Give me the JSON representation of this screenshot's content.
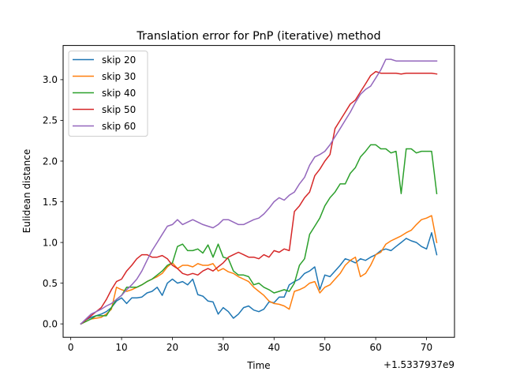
{
  "chart_data": {
    "type": "line",
    "title": "Translation error for PnP (iterative) method",
    "xlabel": "Time",
    "ylabel": "Eulidean distance",
    "x_offset_label": "+1.5337937e9",
    "xlim": [
      -1.5,
      75.5
    ],
    "ylim": [
      -0.165,
      3.42
    ],
    "x_ticks": [
      0,
      10,
      20,
      30,
      40,
      50,
      60,
      70
    ],
    "y_ticks": [
      0.0,
      0.5,
      1.0,
      1.5,
      2.0,
      2.5,
      3.0
    ],
    "x_tick_labels": [
      "0",
      "10",
      "20",
      "30",
      "40",
      "50",
      "60",
      "70"
    ],
    "y_tick_labels": [
      "0.0",
      "0.5",
      "1.0",
      "1.5",
      "2.0",
      "2.5",
      "3.0"
    ],
    "grid": false,
    "legend_position": "top-left",
    "series": [
      {
        "name": "skip 20",
        "color": "#1f77b4",
        "x": [
          2,
          3,
          4,
          5,
          6,
          7,
          8,
          9,
          10,
          11,
          12,
          13,
          14,
          15,
          16,
          17,
          18,
          19,
          20,
          21,
          22,
          23,
          24,
          25,
          26,
          27,
          28,
          29,
          30,
          31,
          32,
          33,
          34,
          35,
          36,
          37,
          38,
          39,
          40,
          41,
          42,
          43,
          44,
          45,
          46,
          47,
          48,
          49,
          50,
          51,
          52,
          53,
          54,
          55,
          56,
          57,
          58,
          59,
          60,
          61,
          62,
          63,
          64,
          65,
          66,
          67,
          68,
          69,
          70,
          71,
          72
        ],
        "y": [
          0.0,
          0.05,
          0.08,
          0.1,
          0.12,
          0.15,
          0.2,
          0.28,
          0.32,
          0.25,
          0.32,
          0.32,
          0.33,
          0.38,
          0.4,
          0.45,
          0.35,
          0.5,
          0.55,
          0.5,
          0.52,
          0.48,
          0.55,
          0.36,
          0.34,
          0.28,
          0.27,
          0.12,
          0.2,
          0.15,
          0.07,
          0.12,
          0.2,
          0.22,
          0.17,
          0.15,
          0.18,
          0.27,
          0.26,
          0.33,
          0.33,
          0.48,
          0.52,
          0.55,
          0.62,
          0.65,
          0.7,
          0.42,
          0.6,
          0.58,
          0.65,
          0.72,
          0.8,
          0.78,
          0.75,
          0.8,
          0.78,
          0.82,
          0.85,
          0.9,
          0.92,
          0.9,
          0.95,
          1.0,
          1.05,
          1.02,
          1.0,
          0.95,
          0.92,
          1.12,
          0.85
        ]
      },
      {
        "name": "skip 30",
        "color": "#ff7f0e",
        "x": [
          2,
          4,
          5,
          6,
          7,
          8,
          9,
          10,
          11,
          12,
          13,
          14,
          15,
          16,
          17,
          18,
          19,
          20,
          21,
          22,
          23,
          24,
          25,
          26,
          27,
          28,
          29,
          30,
          31,
          32,
          33,
          34,
          35,
          36,
          37,
          38,
          39,
          40,
          41,
          42,
          43,
          44,
          45,
          46,
          47,
          48,
          49,
          50,
          51,
          52,
          53,
          54,
          55,
          56,
          57,
          58,
          59,
          60,
          61,
          62,
          63,
          64,
          65,
          66,
          67,
          68,
          69,
          70,
          71,
          72
        ],
        "y": [
          0.0,
          0.06,
          0.07,
          0.08,
          0.12,
          0.18,
          0.45,
          0.42,
          0.4,
          0.42,
          0.45,
          0.48,
          0.52,
          0.55,
          0.58,
          0.62,
          0.7,
          0.75,
          0.68,
          0.72,
          0.72,
          0.7,
          0.74,
          0.72,
          0.72,
          0.74,
          0.65,
          0.68,
          0.64,
          0.62,
          0.58,
          0.55,
          0.52,
          0.45,
          0.4,
          0.35,
          0.28,
          0.25,
          0.24,
          0.22,
          0.18,
          0.4,
          0.42,
          0.45,
          0.5,
          0.52,
          0.38,
          0.45,
          0.48,
          0.55,
          0.62,
          0.72,
          0.78,
          0.82,
          0.58,
          0.62,
          0.72,
          0.85,
          0.88,
          0.98,
          1.02,
          1.05,
          1.08,
          1.12,
          1.15,
          1.22,
          1.28,
          1.3,
          1.33,
          1.0
        ]
      },
      {
        "name": "skip 40",
        "color": "#2ca02c",
        "x": [
          2,
          4,
          5,
          6,
          7,
          8,
          9,
          10,
          11,
          12,
          13,
          14,
          15,
          16,
          17,
          18,
          19,
          20,
          21,
          22,
          23,
          24,
          25,
          26,
          27,
          28,
          29,
          30,
          31,
          32,
          33,
          34,
          35,
          36,
          37,
          38,
          39,
          40,
          41,
          42,
          43,
          44,
          45,
          46,
          47,
          48,
          49,
          50,
          51,
          52,
          53,
          54,
          55,
          56,
          57,
          58,
          59,
          60,
          61,
          62,
          63,
          64,
          65,
          66,
          67,
          68,
          69,
          70,
          71,
          72
        ],
        "y": [
          0.0,
          0.06,
          0.1,
          0.1,
          0.1,
          0.2,
          0.3,
          0.35,
          0.45,
          0.45,
          0.45,
          0.48,
          0.52,
          0.55,
          0.6,
          0.65,
          0.72,
          0.75,
          0.95,
          0.98,
          0.9,
          0.9,
          0.92,
          0.87,
          0.97,
          0.82,
          0.98,
          0.82,
          0.8,
          0.65,
          0.6,
          0.6,
          0.58,
          0.48,
          0.5,
          0.45,
          0.42,
          0.38,
          0.4,
          0.42,
          0.4,
          0.5,
          0.72,
          0.8,
          1.1,
          1.2,
          1.3,
          1.45,
          1.55,
          1.62,
          1.72,
          1.72,
          1.85,
          1.92,
          2.05,
          2.12,
          2.2,
          2.2,
          2.15,
          2.15,
          2.1,
          2.12,
          1.6,
          2.15,
          2.15,
          2.1,
          2.12,
          2.12,
          2.12,
          1.6
        ]
      },
      {
        "name": "skip 50",
        "color": "#d62728",
        "x": [
          2,
          4,
          5,
          6,
          7,
          8,
          9,
          10,
          11,
          12,
          13,
          14,
          15,
          16,
          17,
          18,
          19,
          20,
          21,
          22,
          23,
          24,
          25,
          26,
          27,
          28,
          29,
          30,
          31,
          32,
          33,
          34,
          35,
          36,
          37,
          38,
          39,
          40,
          41,
          42,
          43,
          44,
          45,
          46,
          47,
          48,
          49,
          50,
          51,
          52,
          53,
          54,
          55,
          56,
          57,
          58,
          59,
          60,
          61,
          62,
          63,
          64,
          65,
          66,
          67,
          68,
          69,
          70,
          71,
          72
        ],
        "y": [
          0.0,
          0.1,
          0.15,
          0.2,
          0.3,
          0.42,
          0.52,
          0.55,
          0.65,
          0.72,
          0.8,
          0.85,
          0.85,
          0.82,
          0.82,
          0.84,
          0.8,
          0.72,
          0.68,
          0.62,
          0.6,
          0.62,
          0.6,
          0.65,
          0.68,
          0.65,
          0.7,
          0.75,
          0.82,
          0.85,
          0.88,
          0.85,
          0.82,
          0.82,
          0.8,
          0.85,
          0.82,
          0.9,
          0.88,
          0.92,
          0.9,
          1.38,
          1.45,
          1.55,
          1.62,
          1.82,
          1.9,
          2.0,
          2.08,
          2.4,
          2.5,
          2.6,
          2.7,
          2.75,
          2.85,
          2.95,
          3.05,
          3.1,
          3.08,
          3.08,
          3.08,
          3.08,
          3.07,
          3.08,
          3.08,
          3.08,
          3.08,
          3.08,
          3.08,
          3.07
        ]
      },
      {
        "name": "skip 60",
        "color": "#9467bd",
        "x": [
          2,
          4,
          5,
          6,
          7,
          8,
          9,
          10,
          11,
          12,
          13,
          14,
          15,
          16,
          17,
          18,
          19,
          20,
          21,
          22,
          23,
          24,
          25,
          26,
          27,
          28,
          29,
          30,
          31,
          32,
          33,
          34,
          35,
          36,
          37,
          38,
          39,
          40,
          41,
          42,
          43,
          44,
          45,
          46,
          47,
          48,
          49,
          50,
          51,
          52,
          53,
          54,
          55,
          56,
          57,
          58,
          59,
          60,
          61,
          62,
          63,
          64,
          65,
          66,
          67,
          68,
          69,
          70,
          71,
          72
        ],
        "y": [
          0.0,
          0.12,
          0.15,
          0.18,
          0.22,
          0.25,
          0.3,
          0.35,
          0.42,
          0.48,
          0.55,
          0.65,
          0.78,
          0.9,
          1.0,
          1.1,
          1.2,
          1.22,
          1.28,
          1.22,
          1.25,
          1.28,
          1.25,
          1.22,
          1.2,
          1.18,
          1.22,
          1.28,
          1.28,
          1.25,
          1.22,
          1.22,
          1.25,
          1.28,
          1.3,
          1.35,
          1.42,
          1.5,
          1.55,
          1.52,
          1.58,
          1.62,
          1.72,
          1.8,
          1.95,
          2.05,
          2.08,
          2.12,
          2.2,
          2.3,
          2.4,
          2.5,
          2.6,
          2.72,
          2.82,
          2.88,
          2.92,
          3.02,
          3.12,
          3.25,
          3.25,
          3.23,
          3.23,
          3.23,
          3.23,
          3.23,
          3.23,
          3.23,
          3.23,
          3.23
        ]
      }
    ]
  }
}
